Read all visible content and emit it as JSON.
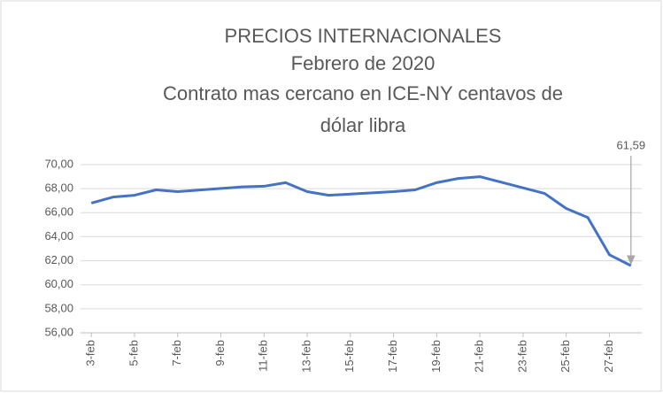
{
  "chart_data": {
    "type": "line",
    "title": [
      "PRECIOS INTERNACIONALES",
      "Febrero de 2020",
      "Contrato mas cercano en ICE-NY centavos de",
      "dólar libra"
    ],
    "x": [
      3,
      4,
      5,
      6,
      7,
      10,
      11,
      12,
      13,
      14,
      17,
      18,
      19,
      20,
      21,
      24,
      25,
      26,
      27,
      28
    ],
    "values": [
      66.8,
      67.3,
      67.45,
      67.9,
      67.75,
      68.15,
      68.2,
      68.5,
      67.75,
      67.45,
      67.75,
      67.9,
      68.5,
      68.85,
      69.0,
      67.6,
      66.35,
      65.6,
      62.5,
      61.59
    ],
    "value_labels": [
      null,
      null,
      null,
      null,
      null,
      null,
      null,
      null,
      null,
      null,
      null,
      null,
      null,
      null,
      null,
      null,
      null,
      null,
      null,
      "61,59"
    ],
    "color": "#4472c4",
    "xlim": [
      2.5,
      28.5
    ],
    "xticks": [
      {
        "value": 3,
        "label": "3-feb"
      },
      {
        "value": 5,
        "label": "5-feb"
      },
      {
        "value": 7,
        "label": "7-feb"
      },
      {
        "value": 9,
        "label": "9-feb"
      },
      {
        "value": 11,
        "label": "11-feb"
      },
      {
        "value": 13,
        "label": "13-feb"
      },
      {
        "value": 15,
        "label": "15-feb"
      },
      {
        "value": 17,
        "label": "17-feb"
      },
      {
        "value": 19,
        "label": "19-feb"
      },
      {
        "value": 21,
        "label": "21-feb"
      },
      {
        "value": 23,
        "label": "23-feb"
      },
      {
        "value": 25,
        "label": "25-feb"
      },
      {
        "value": 27,
        "label": "27-feb"
      }
    ],
    "ylim": [
      56,
      70
    ],
    "yticks": [
      {
        "value": 56,
        "label": "56,00"
      },
      {
        "value": 58,
        "label": "58,00"
      },
      {
        "value": 60,
        "label": "60,00"
      },
      {
        "value": 62,
        "label": "62,00"
      },
      {
        "value": 64,
        "label": "64,00"
      },
      {
        "value": 66,
        "label": "66,00"
      },
      {
        "value": 68,
        "label": "68,00"
      },
      {
        "value": 70,
        "label": "70,00"
      }
    ],
    "grid": true
  }
}
